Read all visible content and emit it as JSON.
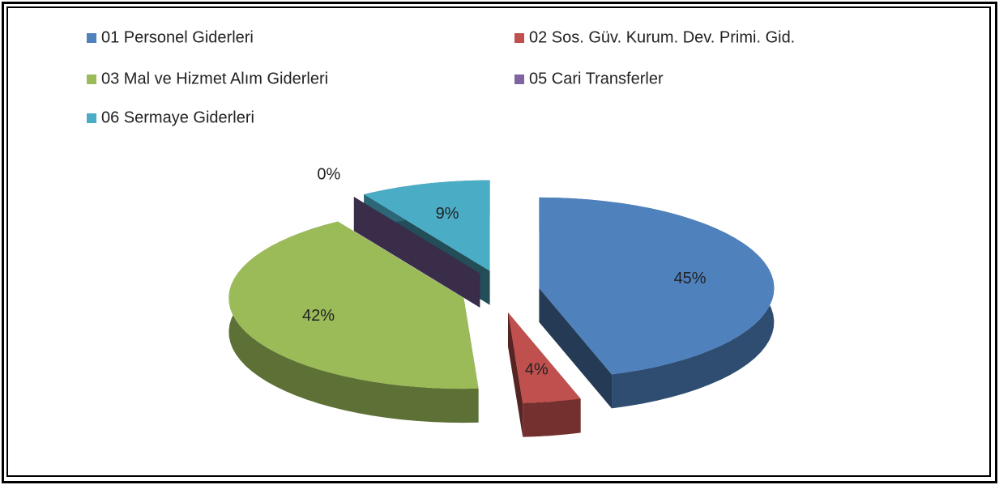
{
  "chart_data": {
    "type": "pie",
    "categories": [
      "01 Personel Giderleri",
      "02 Sos. Güv. Kurum. Dev. Primi. Gid.",
      "03 Mal ve Hizmet Alım Giderleri",
      "05 Cari Transferler",
      "06 Sermaye Giderleri"
    ],
    "values": [
      45,
      4,
      42,
      0,
      9
    ],
    "value_labels": [
      "45%",
      "4%",
      "42%",
      "0%",
      "9%"
    ],
    "colors": [
      "#4f81bd",
      "#c0504d",
      "#9bbb59",
      "#8064a2",
      "#4bacc6"
    ],
    "legend": "top"
  }
}
